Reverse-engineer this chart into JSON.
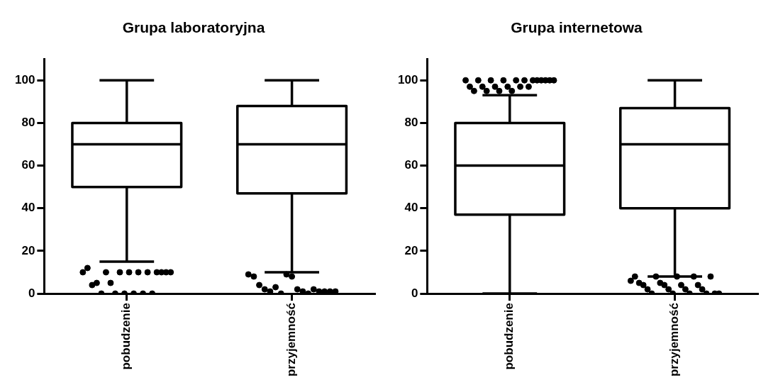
{
  "chart_data": [
    {
      "type": "box",
      "title": "Grupa laboratoryjna",
      "categories": [
        "pobudzenie",
        "przyjemność"
      ],
      "color": "#000000",
      "ylim": [
        0,
        110
      ],
      "yticks": [
        0,
        20,
        40,
        60,
        80,
        100
      ],
      "boxes": [
        {
          "low": 15,
          "q1": 50,
          "median": 70,
          "q3": 80,
          "high": 100,
          "outliers": [
            10,
            10,
            10,
            10,
            12,
            10,
            10,
            10,
            10,
            10,
            10,
            4,
            5,
            5,
            0,
            0,
            0,
            0,
            0,
            0
          ]
        },
        {
          "low": 10,
          "q1": 47,
          "median": 70,
          "q3": 88,
          "high": 100,
          "outliers": [
            9,
            8,
            8,
            9,
            4,
            2,
            2,
            1,
            1,
            1,
            1,
            1,
            1,
            2,
            3,
            0,
            0
          ]
        }
      ]
    },
    {
      "type": "box",
      "title": "Grupa internetowa",
      "categories": [
        "pobudzenie",
        "przyjemność"
      ],
      "color": "#000000",
      "ylim": [
        0,
        110
      ],
      "yticks": [
        0,
        20,
        40,
        60,
        80,
        100
      ],
      "boxes": [
        {
          "low": 0,
          "q1": 37,
          "median": 60,
          "q3": 80,
          "high": 93,
          "outliers": [
            100,
            100,
            100,
            100,
            100,
            100,
            100,
            100,
            100,
            100,
            100,
            100,
            97,
            97,
            97,
            97,
            97,
            97,
            95,
            95,
            95,
            95
          ]
        },
        {
          "low": 8,
          "q1": 40,
          "median": 70,
          "q3": 87,
          "high": 100,
          "outliers": [
            6,
            8,
            8,
            8,
            8,
            8,
            5,
            4,
            4,
            4,
            4,
            5,
            2,
            2,
            2,
            2,
            0,
            0,
            0,
            0,
            0,
            0
          ]
        }
      ]
    }
  ]
}
